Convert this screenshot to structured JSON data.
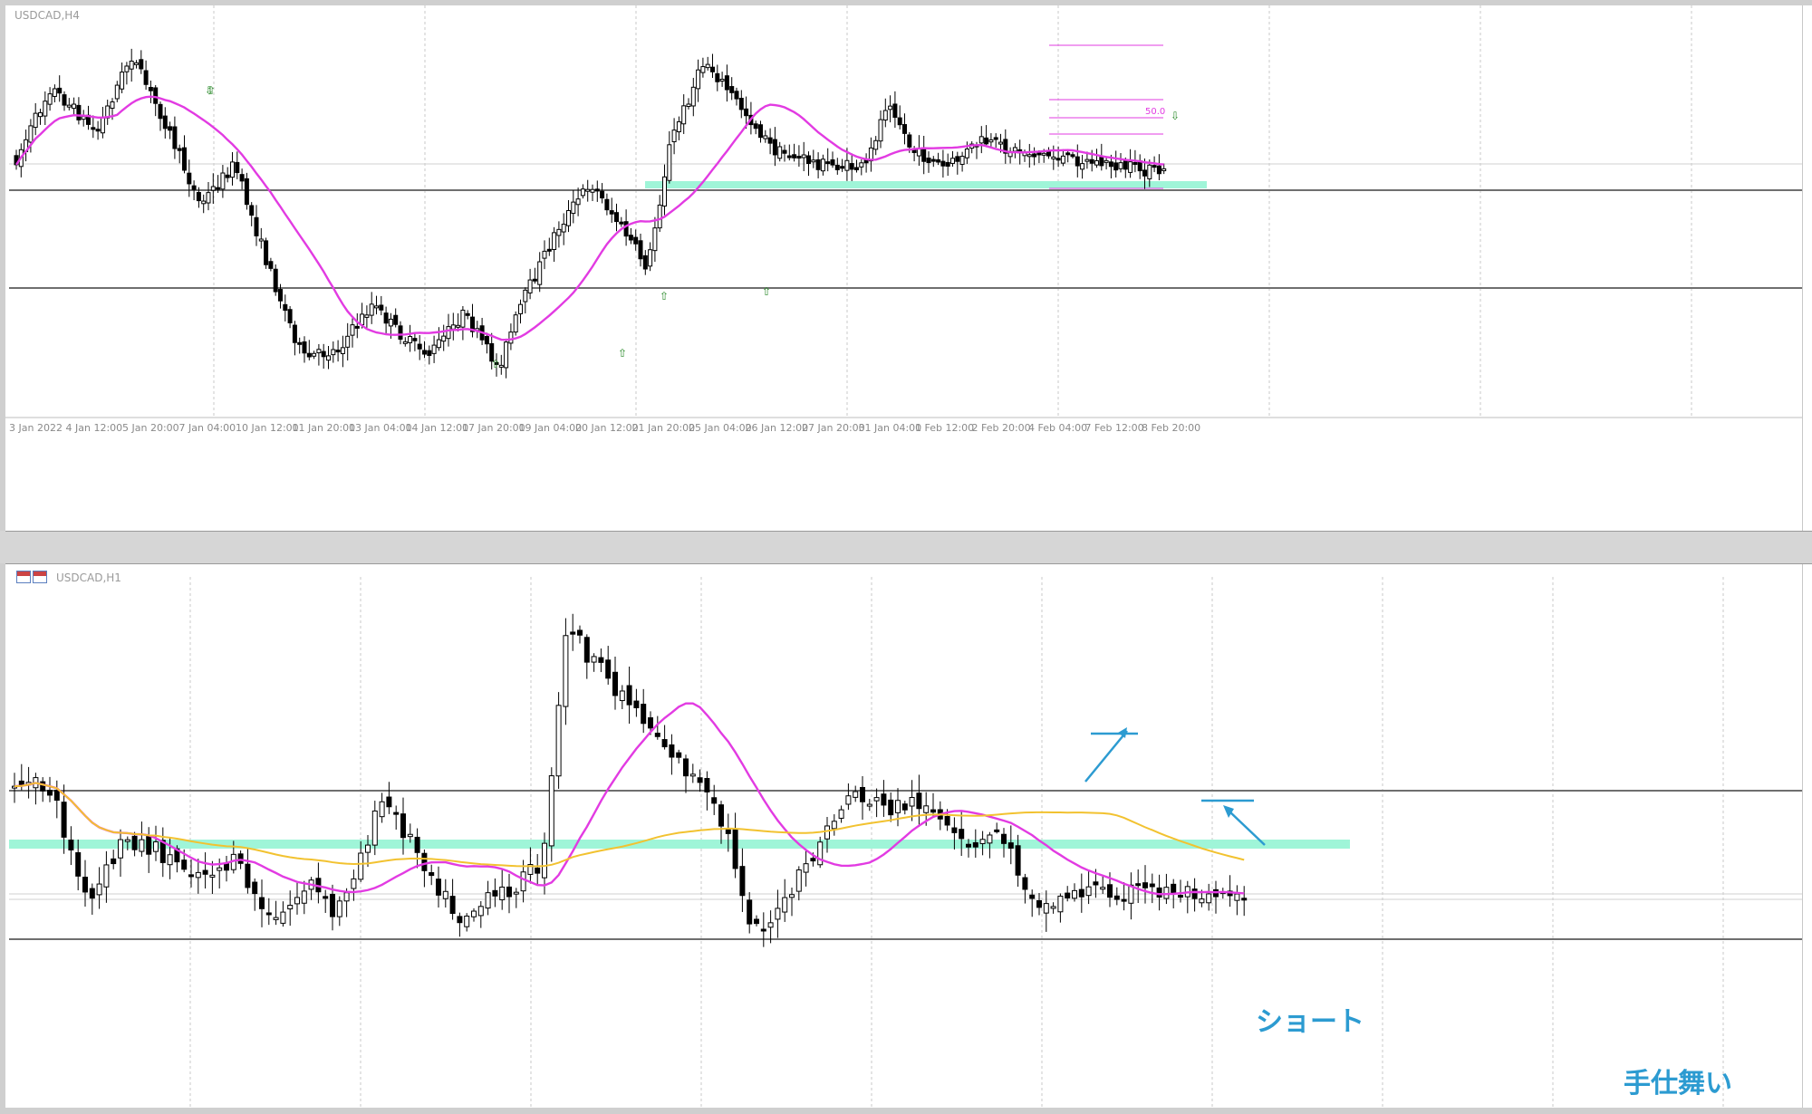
{
  "top_chart": {
    "title": "USDCAD,H4",
    "time_labels": [
      "3 Jan 2022",
      "4 Jan 12:00",
      "5 Jan 20:00",
      "7 Jan 04:00",
      "10 Jan 12:00",
      "11 Jan 20:00",
      "13 Jan 04:00",
      "14 Jan 12:00",
      "17 Jan 20:00",
      "19 Jan 04:00",
      "20 Jan 12:00",
      "21 Jan 20:00",
      "25 Jan 04:00",
      "26 Jan 12:00",
      "27 Jan 20:00",
      "31 Jan 04:00",
      "1 Feb 12:00",
      "2 Feb 20:00",
      "4 Feb 04:00",
      "7 Feb 12:00",
      "8 Feb 20:00"
    ],
    "fib_label": "50.0"
  },
  "bottom_chart": {
    "title": "USDCAD,H1",
    "annotation_short": "ショート",
    "annotation_close": "手仕舞い"
  },
  "colors": {
    "ma_fast": "#e23be2",
    "ma_slow": "#f2c230",
    "zone": "#9ff5d8",
    "annotation": "#2c9bd1"
  }
}
